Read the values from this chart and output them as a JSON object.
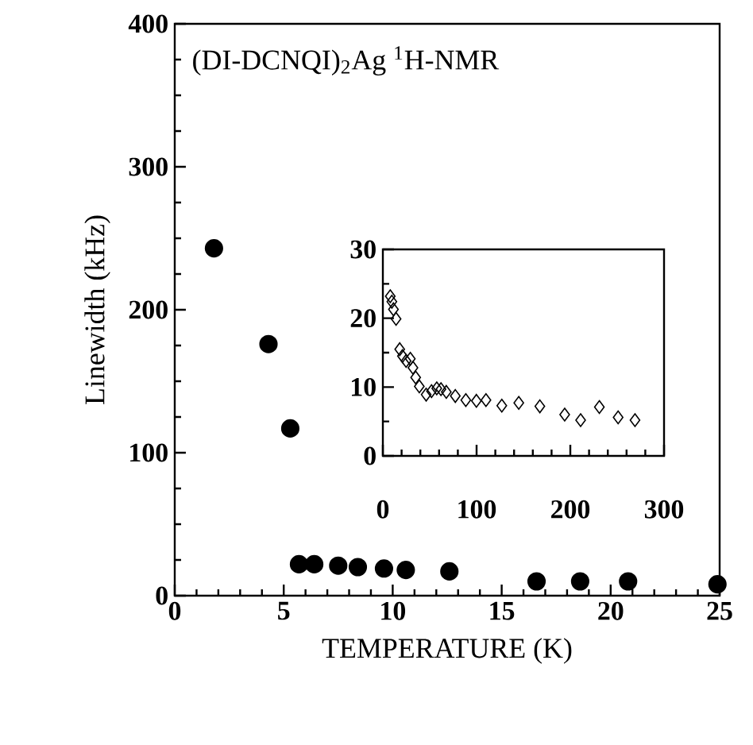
{
  "chart_data": [
    {
      "type": "scatter",
      "title": "(DI-DCNQI)$_{2}$Ag $^{1}$H-NMR",
      "xlabel": "TEMPERATURE (K)",
      "ylabel": "Linewidth (kHz)",
      "marker": "circle",
      "color": "#000000",
      "x": [
        1.8,
        4.3,
        5.3,
        5.7,
        6.4,
        7.5,
        8.4,
        9.6,
        10.6,
        12.6,
        16.6,
        18.6,
        20.8,
        24.9
      ],
      "values": [
        243,
        176,
        117,
        22,
        22,
        21,
        20,
        19,
        18,
        17,
        10,
        10,
        10,
        8
      ],
      "xlim": [
        0,
        25
      ],
      "ylim": [
        0,
        400
      ],
      "xticks": [
        0,
        5,
        10,
        15,
        20,
        25
      ],
      "yticks": [
        0,
        100,
        200,
        300,
        400
      ]
    },
    {
      "type": "scatter",
      "marker": "diamond",
      "color": "#000000",
      "x": [
        7.9,
        9.6,
        11.3,
        14.1,
        18,
        20.9,
        24.8,
        29.3,
        32.1,
        35,
        38.9,
        46.2,
        51.9,
        57.5,
        62,
        67.7,
        77.3,
        88.5,
        99.8,
        110,
        126.9,
        145,
        167.5,
        194,
        211,
        231,
        251,
        269
      ],
      "values": [
        23.2,
        22.4,
        21.3,
        19.9,
        15.5,
        14.5,
        13.8,
        14.1,
        12.8,
        11.4,
        10.1,
        8.9,
        9.4,
        9.8,
        9.7,
        9.3,
        8.7,
        8.1,
        8.0,
        8.1,
        7.3,
        7.7,
        7.2,
        6.0,
        5.2,
        7.1,
        5.6,
        5.2
      ],
      "xlim": [
        0,
        300
      ],
      "ylim": [
        0,
        30
      ],
      "xticks": [
        0,
        100,
        200,
        300
      ],
      "yticks": [
        0,
        10,
        20,
        30
      ]
    }
  ]
}
